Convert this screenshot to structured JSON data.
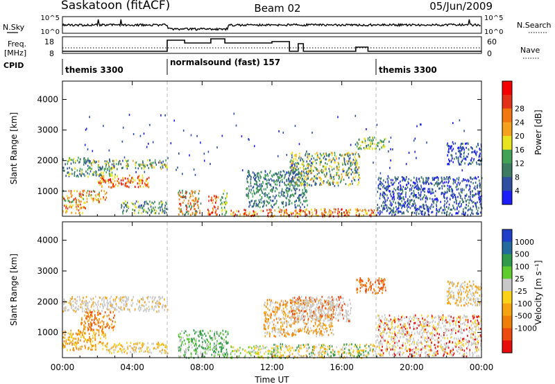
{
  "header": {
    "station": "Saskatoon (fitACF)",
    "beam": "Beam 02",
    "date": "05/Jun/2009"
  },
  "top_panels": {
    "nsky_label": "N.Sky",
    "nsky_ticks": [
      "10^5",
      "10^0"
    ],
    "nsearch_label": "N.Search",
    "nsearch_ticks": [
      "10^5",
      "10^0"
    ],
    "freq_label_line1": "Freq.",
    "freq_label_line2": "[MHz]",
    "freq_ticks": [
      "18",
      "8"
    ],
    "nave_label": "Nave",
    "nave_ticks": [
      "60",
      "0"
    ],
    "cpid_label": "CPID",
    "cpid_segments": [
      {
        "start_h": 0,
        "end_h": 6,
        "label": "themis 3300"
      },
      {
        "start_h": 6,
        "end_h": 18,
        "label": "normalsound (fast) 157"
      },
      {
        "start_h": 18,
        "end_h": 24,
        "label": "themis 3300"
      }
    ]
  },
  "colorbars": {
    "power": {
      "title": "Power [dB]",
      "colors": [
        "#1d1dfa",
        "#2f4fa0",
        "#3d7b62",
        "#44a257",
        "#e8e420",
        "#f4a21e",
        "#f0780f",
        "#e33019",
        "#f40000"
      ],
      "tick_labels": [
        "4",
        "8",
        "12",
        "16",
        "20",
        "24",
        "28"
      ]
    },
    "velocity": {
      "title": "Velocity [m s⁻¹]",
      "colors": [
        "#1f3fc8",
        "#226b9c",
        "#2f9a4a",
        "#5fcc2e",
        "#c8c8c8",
        "#fbd21a",
        "#f6a412",
        "#f07f0a",
        "#ed4a10",
        "#e80d0d"
      ],
      "tick_labels": [
        "1000",
        "500",
        "100",
        "25",
        "-25",
        "-100",
        "-500",
        "-1000"
      ]
    }
  },
  "chart_data": {
    "type": "heatmap",
    "x_axis": {
      "label": "Time UT",
      "range_h": [
        0,
        24
      ],
      "tick_labels": [
        "00:00",
        "04:00",
        "08:00",
        "12:00",
        "16:00",
        "20:00",
        "00:00"
      ],
      "tick_values_h": [
        0,
        4,
        8,
        12,
        16,
        20,
        24
      ]
    },
    "panels": [
      {
        "name": "power",
        "ylabel": "Slant Range [km]",
        "ylim_km": [
          180,
          4600
        ],
        "y_ticks": [
          1000,
          2000,
          3000,
          4000
        ],
        "colorbar": "power",
        "echo_regions": [
          {
            "t": [
              0.0,
              1.5
            ],
            "r": [
              1900,
              2150
            ],
            "palette": [
              1,
              2,
              3,
              4
            ]
          },
          {
            "t": [
              1.5,
              6.0
            ],
            "r": [
              1750,
              2050
            ],
            "palette": [
              1,
              2,
              3,
              4,
              5
            ]
          },
          {
            "t": [
              0.0,
              3.0
            ],
            "r": [
              1500,
              1800
            ],
            "palette": [
              1,
              2,
              3,
              4
            ]
          },
          {
            "t": [
              2.0,
              5.0
            ],
            "r": [
              1150,
              1550
            ],
            "palette": [
              4,
              5,
              6,
              7,
              8
            ]
          },
          {
            "t": [
              0.0,
              2.5
            ],
            "r": [
              650,
              1050
            ],
            "palette": [
              3,
              4,
              5,
              6,
              7
            ]
          },
          {
            "t": [
              0.0,
              1.3
            ],
            "r": [
              300,
              600
            ],
            "palette": [
              4,
              5,
              6,
              7
            ]
          },
          {
            "t": [
              3.3,
              6.0
            ],
            "r": [
              300,
              700
            ],
            "palette": [
              1,
              2,
              3,
              4
            ]
          },
          {
            "t": [
              6.6,
              7.9
            ],
            "r": [
              250,
              1050
            ],
            "palette": [
              2,
              3,
              5,
              6,
              7
            ]
          },
          {
            "t": [
              8.3,
              8.9
            ],
            "r": [
              250,
              900
            ],
            "palette": [
              5,
              6,
              7,
              8
            ]
          },
          {
            "t": [
              9.0,
              9.4
            ],
            "r": [
              250,
              1050
            ],
            "palette": [
              2,
              3,
              4
            ]
          },
          {
            "t": [
              9.6,
              18.0
            ],
            "r": [
              200,
              450
            ],
            "palette": [
              4,
              5,
              6,
              7,
              8
            ]
          },
          {
            "t": [
              10.5,
              14.0
            ],
            "r": [
              500,
              1700
            ],
            "palette": [
              1,
              2,
              3
            ]
          },
          {
            "t": [
              13.0,
              17.0
            ],
            "r": [
              1200,
              2300
            ],
            "palette": [
              1,
              2,
              3,
              4,
              5
            ]
          },
          {
            "t": [
              16.8,
              18.5
            ],
            "r": [
              2400,
              2800
            ],
            "palette": [
              2,
              3,
              4
            ]
          },
          {
            "t": [
              18.0,
              24.0
            ],
            "r": [
              250,
              1500
            ],
            "palette": [
              0,
              1,
              2
            ]
          },
          {
            "t": [
              22.0,
              24.0
            ],
            "r": [
              1900,
              2600
            ],
            "palette": [
              0,
              1,
              2
            ]
          },
          {
            "t": [
              1.0,
              23.0
            ],
            "r": [
              1500,
              3600
            ],
            "palette": [
              0,
              1
            ],
            "sparse": true
          }
        ]
      },
      {
        "name": "velocity",
        "ylabel": "Slant Range [km]",
        "ylim_km": [
          180,
          4600
        ],
        "y_ticks": [
          1000,
          2000,
          3000,
          4000
        ],
        "colorbar": "velocity",
        "echo_regions": [
          {
            "t": [
              0.0,
              6.0
            ],
            "r": [
              1700,
              2200
            ],
            "palette": [
              4,
              4,
              4,
              6
            ]
          },
          {
            "t": [
              0.0,
              2.5
            ],
            "r": [
              450,
              1100
            ],
            "palette": [
              5,
              6,
              7
            ]
          },
          {
            "t": [
              1.0,
              3.0
            ],
            "r": [
              1100,
              1700
            ],
            "palette": [
              6,
              7,
              8
            ]
          },
          {
            "t": [
              2.5,
              6.0
            ],
            "r": [
              350,
              700
            ],
            "palette": [
              4,
              5,
              6
            ]
          },
          {
            "t": [
              6.6,
              9.5
            ],
            "r": [
              200,
              1100
            ],
            "palette": [
              2,
              3,
              4
            ]
          },
          {
            "t": [
              9.6,
              12.5
            ],
            "r": [
              200,
              600
            ],
            "palette": [
              3,
              4,
              5
            ]
          },
          {
            "t": [
              12.0,
              18.0
            ],
            "r": [
              200,
              650
            ],
            "palette": [
              4,
              5,
              6,
              2
            ]
          },
          {
            "t": [
              11.5,
              15.5
            ],
            "r": [
              900,
              2100
            ],
            "palette": [
              6,
              7,
              4
            ]
          },
          {
            "t": [
              13.0,
              16.5
            ],
            "r": [
              1400,
              2200
            ],
            "palette": [
              4,
              4,
              8
            ]
          },
          {
            "t": [
              16.8,
              18.5
            ],
            "r": [
              2300,
              2800
            ],
            "palette": [
              7,
              8
            ]
          },
          {
            "t": [
              18.0,
              24.0
            ],
            "r": [
              250,
              1600
            ],
            "palette": [
              4,
              4,
              5,
              9
            ]
          },
          {
            "t": [
              22.0,
              24.0
            ],
            "r": [
              1900,
              2700
            ],
            "palette": [
              4,
              6
            ]
          }
        ]
      }
    ]
  }
}
